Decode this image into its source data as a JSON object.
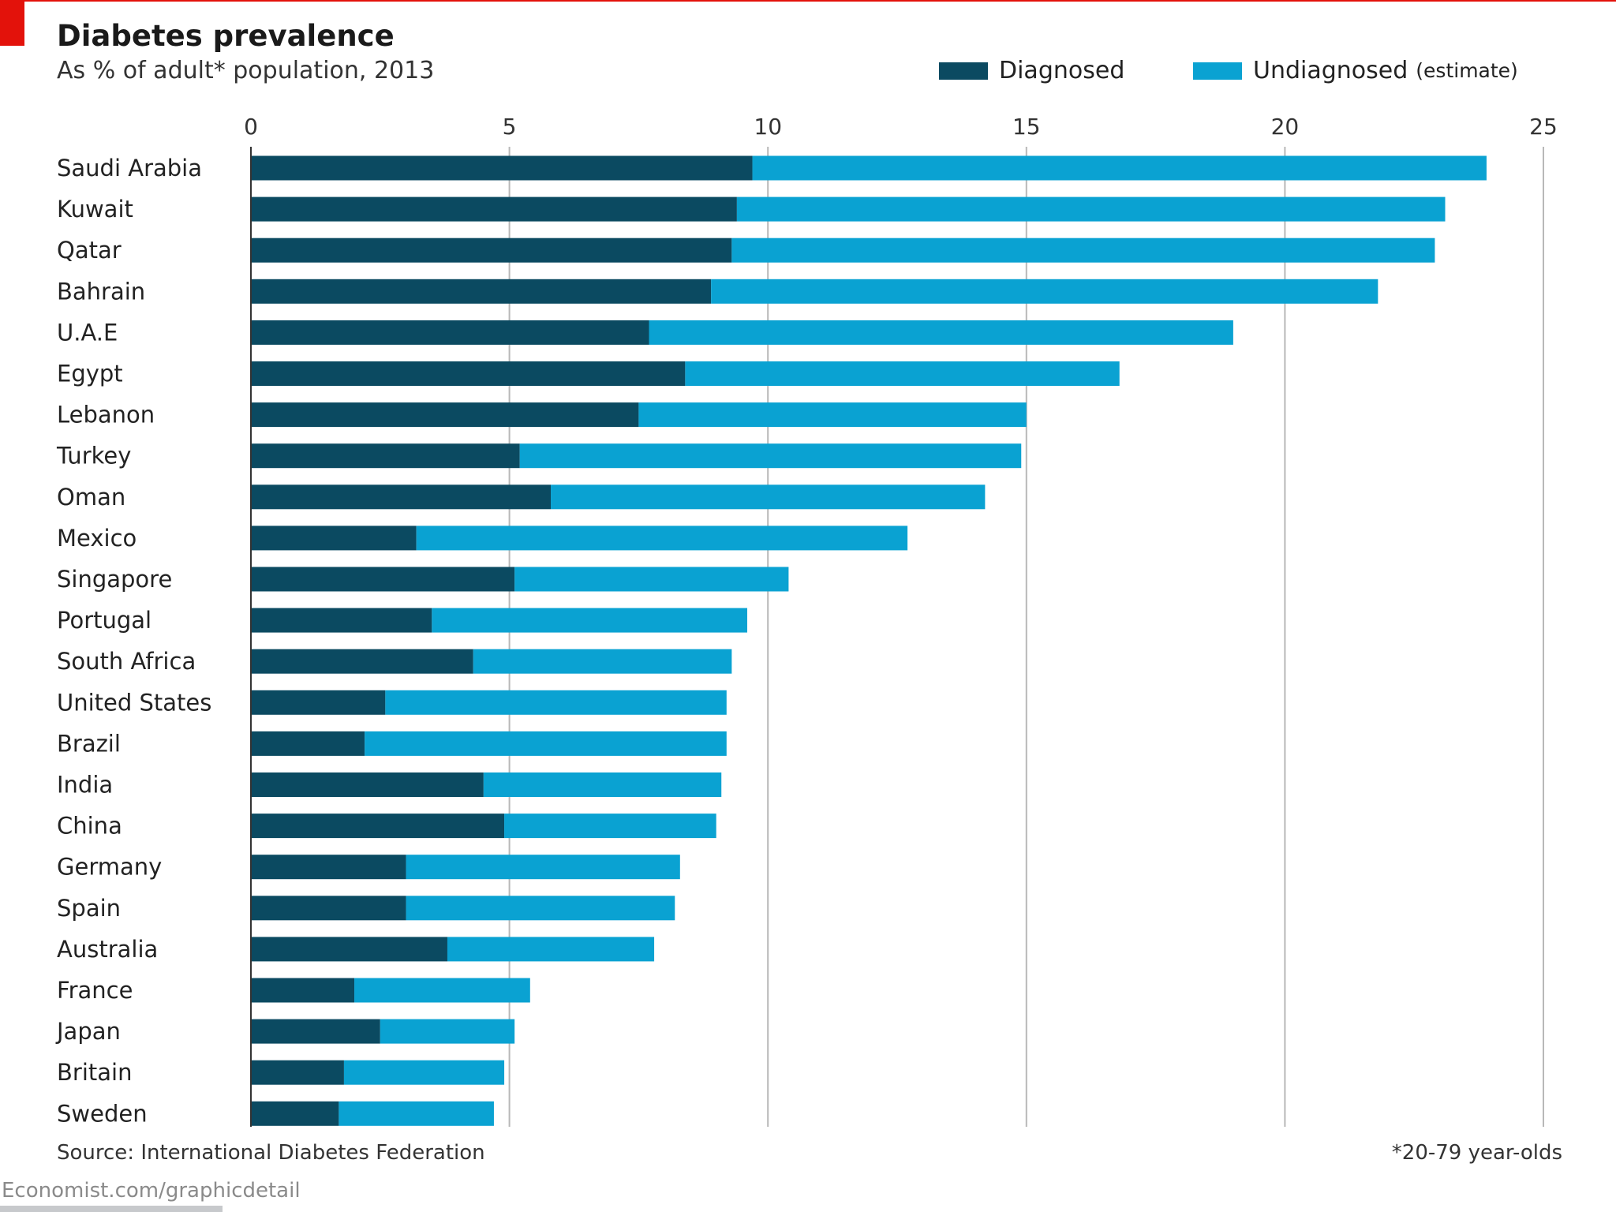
{
  "header": {
    "title": "Diabetes prevalence",
    "subtitle": "As % of adult* population, 2013"
  },
  "legend": {
    "diagnosed": "Diagnosed",
    "undiagnosed": "Undiagnosed",
    "undiagnosed_note": "(estimate)"
  },
  "footer": {
    "source": "Source: International Diabetes Federation",
    "footnote": "*20-79 year-olds",
    "credit": "Economist.com/graphicdetail"
  },
  "colors": {
    "diagnosed": "#0b4a61",
    "undiagnosed": "#0aa2d2",
    "gridline": "#b8b8b8",
    "accent": "#e3120b"
  },
  "chart_data": {
    "type": "bar",
    "orientation": "horizontal",
    "stacked": true,
    "title": "Diabetes prevalence",
    "subtitle": "As % of adult* population, 2013",
    "xlim": [
      0,
      25
    ],
    "xticks": [
      0,
      5,
      10,
      15,
      20,
      25
    ],
    "grid": true,
    "legend_position": "top-right",
    "categories": [
      "Saudi Arabia",
      "Kuwait",
      "Qatar",
      "Bahrain",
      "U.A.E",
      "Egypt",
      "Lebanon",
      "Turkey",
      "Oman",
      "Mexico",
      "Singapore",
      "Portugal",
      "South Africa",
      "United States",
      "Brazil",
      "India",
      "China",
      "Germany",
      "Spain",
      "Australia",
      "France",
      "Japan",
      "Britain",
      "Sweden"
    ],
    "series": [
      {
        "name": "Diagnosed",
        "values": [
          9.7,
          9.4,
          9.3,
          8.9,
          7.7,
          8.4,
          7.5,
          5.2,
          5.8,
          3.2,
          5.1,
          3.5,
          4.3,
          2.6,
          2.2,
          4.5,
          4.9,
          3.0,
          3.0,
          3.8,
          2.0,
          2.5,
          1.8,
          1.7
        ]
      },
      {
        "name": "Undiagnosed (estimate)",
        "values": [
          14.2,
          13.7,
          13.6,
          12.9,
          11.3,
          8.4,
          7.5,
          9.7,
          8.4,
          9.5,
          5.3,
          6.1,
          5.0,
          6.6,
          7.0,
          4.6,
          4.1,
          5.3,
          5.2,
          4.0,
          3.4,
          2.6,
          3.1,
          3.0
        ]
      }
    ]
  }
}
